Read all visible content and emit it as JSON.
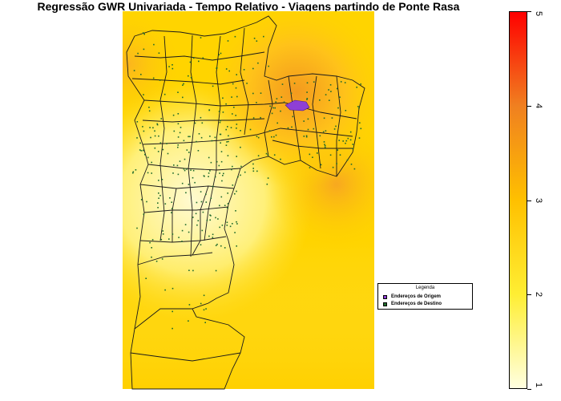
{
  "title": "Regressão GWR Univariada - Tempo Relativo - Viagens partindo de Ponte Rasa",
  "legend": {
    "title": "Legenda",
    "items": [
      {
        "label": "Endereços de Origem",
        "color": "#8e3fd6"
      },
      {
        "label": "Endereços de Destino",
        "color": "#1f6a2c"
      }
    ]
  },
  "colorbar": {
    "min": 1,
    "max": 5,
    "ticks": [
      "1",
      "2",
      "3",
      "4",
      "5"
    ],
    "colors": [
      "#ffffe0",
      "#ffee33",
      "#ffc000",
      "#f08020",
      "#ff0000"
    ]
  },
  "colors": {
    "background_high": "#f5a623",
    "background_mid": "#ffd400",
    "background_low": "#fff7a0",
    "district_border": "#1a1a1a",
    "origin_points": "#8e3fd6",
    "destination_points": "#1f6a2c"
  }
}
